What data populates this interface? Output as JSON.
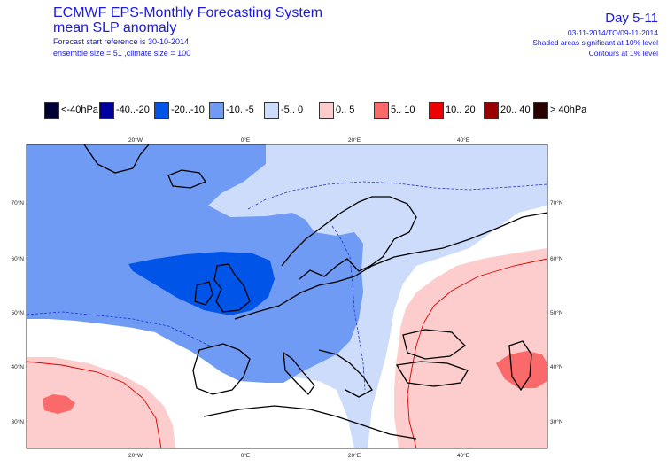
{
  "header": {
    "title_line1": "ECMWF EPS-Monthly Forecasting System",
    "title_line2": "mean SLP anomaly",
    "forecast_start": "Forecast start reference is 30-10-2014",
    "ensemble": "ensemble size = 51  ,climate size = 100",
    "day_range": "Day 5-11",
    "date_range": "03-11-2014/TO/09-11-2014",
    "shaded_note": "Shaded areas significant at 10% level",
    "contour_note": "Contours at 1% level"
  },
  "legend": [
    {
      "label": "<-40hPa",
      "color": "#000033"
    },
    {
      "label": "-40..-20",
      "color": "#0000a0"
    },
    {
      "label": "-20..-10",
      "color": "#0055e8"
    },
    {
      "label": "-10..-5",
      "color": "#6f9bf5"
    },
    {
      "label": "-5..  0",
      "color": "#cddcfb"
    },
    {
      "label": "0..  5",
      "color": "#fdcccc"
    },
    {
      "label": "5..  10",
      "color": "#fb6a6a"
    },
    {
      "label": "10..  20",
      "color": "#ee0000"
    },
    {
      "label": "20..  40",
      "color": "#9b0000"
    },
    {
      "label": ">  40hPa",
      "color": "#2a0000"
    }
  ],
  "map": {
    "lon_labels_top": [
      "20°W",
      "0°E",
      "20°E",
      "40°E"
    ],
    "lon_labels_bottom": [
      "20°W",
      "0°E",
      "20°E",
      "40°E"
    ],
    "lat_labels_left": [
      "70°N",
      "60°N",
      "50°N",
      "40°N",
      "30°N"
    ],
    "lat_labels_right": [
      "70°N",
      "60°N",
      "50°N",
      "40°N",
      "30°N"
    ]
  }
}
